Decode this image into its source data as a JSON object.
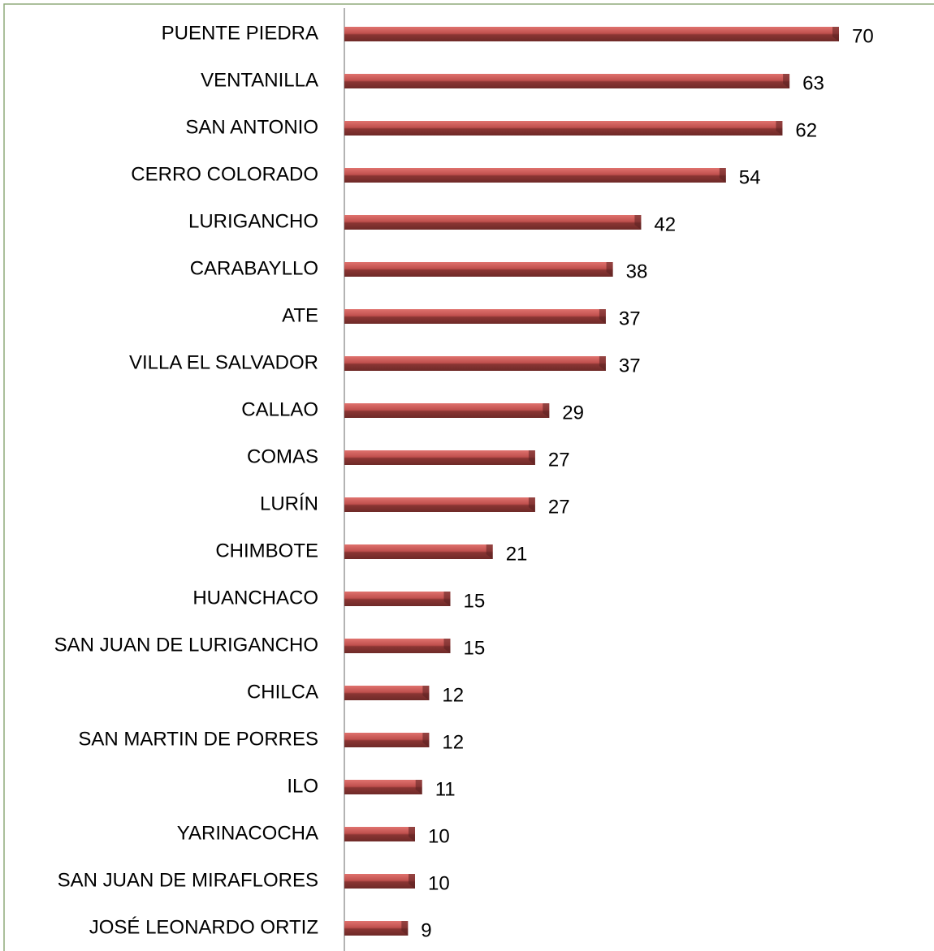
{
  "chart_data": {
    "type": "bar",
    "orientation": "horizontal",
    "categories": [
      "PUENTE PIEDRA",
      "VENTANILLA",
      "SAN ANTONIO",
      "CERRO COLORADO",
      "LURIGANCHO",
      "CARABAYLLO",
      "ATE",
      "VILLA EL SALVADOR",
      "CALLAO",
      "COMAS",
      "LURÍN",
      "CHIMBOTE",
      "HUANCHACO",
      "SAN JUAN DE LURIGANCHO",
      "CHILCA",
      "SAN MARTIN DE PORRES",
      "ILO",
      "YARINACOCHA",
      "SAN JUAN DE MIRAFLORES",
      "JOSÉ LEONARDO ORTIZ"
    ],
    "values": [
      70,
      63,
      62,
      54,
      42,
      38,
      37,
      37,
      29,
      27,
      27,
      21,
      15,
      15,
      12,
      12,
      11,
      10,
      10,
      9
    ],
    "color": "#c0504d",
    "xlim": [
      0,
      70
    ]
  }
}
